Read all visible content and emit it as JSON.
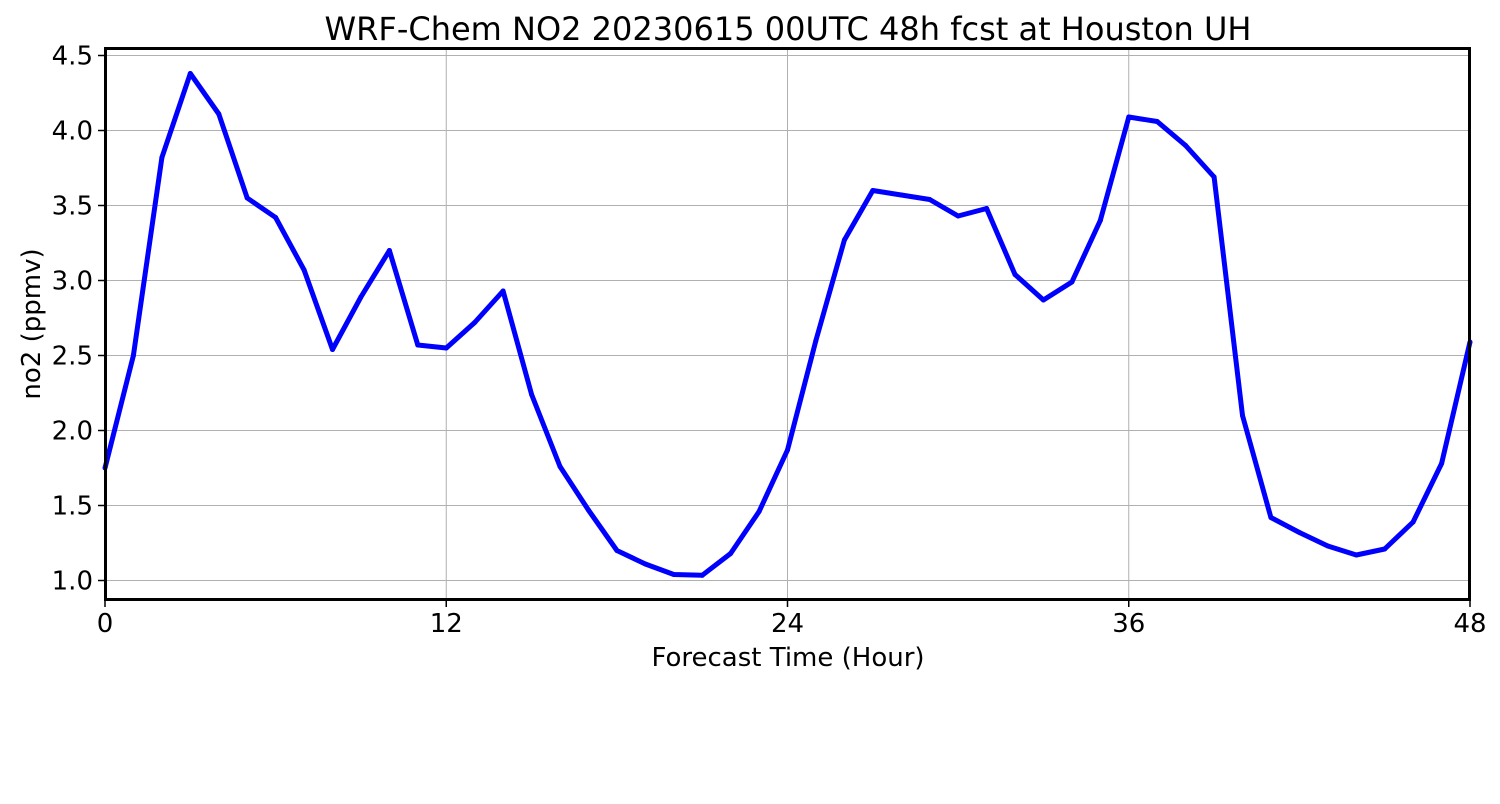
{
  "chart_data": {
    "type": "line",
    "title": "WRF-Chem NO2  20230615 00UTC 48h fcst at Houston UH",
    "xlabel": "Forecast Time (Hour)",
    "ylabel": "no2  (ppmv)",
    "xlim": [
      0,
      48
    ],
    "ylim": [
      0.87,
      4.55
    ],
    "xticks": [
      0,
      12,
      24,
      36,
      48
    ],
    "yticks": [
      1.0,
      1.5,
      2.0,
      2.5,
      3.0,
      3.5,
      4.0,
      4.5
    ],
    "grid": true,
    "line_color": "#0000ff",
    "series": [
      {
        "x": [
          0,
          1,
          2,
          3,
          4,
          5,
          6,
          7,
          8,
          9,
          10,
          11,
          12,
          13,
          14,
          15,
          16,
          17,
          18,
          19,
          20,
          21,
          22,
          23,
          24,
          25,
          26,
          27,
          28,
          29,
          30,
          31,
          32,
          33,
          34,
          35,
          36,
          37,
          38,
          39,
          40,
          41,
          42,
          43,
          44,
          45,
          46,
          47,
          48
        ],
        "values": [
          1.75,
          2.5,
          3.82,
          4.38,
          4.11,
          3.55,
          3.42,
          3.07,
          2.54,
          2.89,
          3.2,
          2.57,
          2.55,
          2.72,
          2.93,
          2.24,
          1.76,
          1.47,
          1.2,
          1.11,
          1.04,
          1.035,
          1.18,
          1.46,
          1.87,
          2.6,
          3.27,
          3.6,
          3.57,
          3.54,
          3.43,
          3.48,
          3.04,
          2.87,
          2.99,
          3.4,
          4.09,
          4.06,
          3.9,
          3.69,
          2.1,
          1.42,
          1.32,
          1.23,
          1.17,
          1.21,
          1.39,
          1.78,
          2.59
        ]
      }
    ]
  }
}
